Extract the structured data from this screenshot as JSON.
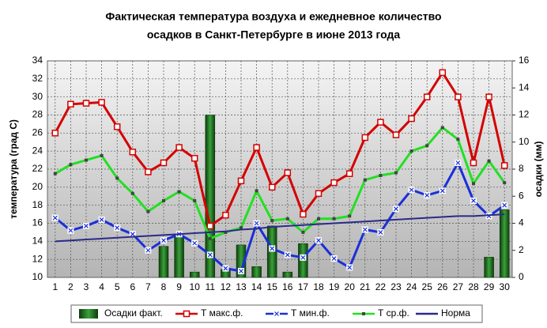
{
  "chart_data": {
    "type": "combo",
    "title": [
      "Фактическая температура воздуха и ежедневное количество",
      "осадков в Санкт-Петербурге в июне 2013 года"
    ],
    "ylabel": "температура (град С)",
    "y2label": "осадки (мм)",
    "categories": [
      "1",
      "2",
      "3",
      "4",
      "5",
      "6",
      "7",
      "8",
      "9",
      "10",
      "11",
      "12",
      "13",
      "14",
      "15",
      "16",
      "17",
      "18",
      "19",
      "20",
      "21",
      "22",
      "23",
      "24",
      "25",
      "26",
      "27",
      "28",
      "29",
      "30"
    ],
    "ylim": [
      10,
      34
    ],
    "yticks": [
      10,
      12,
      14,
      16,
      18,
      20,
      22,
      24,
      26,
      28,
      30,
      32,
      34
    ],
    "y2lim": [
      0,
      16
    ],
    "y2ticks": [
      0,
      2,
      4,
      6,
      8,
      10,
      12,
      14,
      16
    ],
    "grid": true,
    "series": [
      {
        "name": "Осадки факт.",
        "kind": "bar",
        "axis": "y2",
        "color": "#1f6b1f",
        "values": [
          0,
          0,
          0,
          0,
          0,
          0,
          0,
          2.3,
          3.0,
          0.4,
          12.0,
          0.6,
          2.4,
          0.8,
          3.8,
          0.4,
          2.5,
          0,
          0,
          0,
          0,
          0,
          0,
          0,
          0,
          0,
          0,
          0,
          1.5,
          5.0
        ]
      },
      {
        "name": "Т макс.ф.",
        "kind": "line",
        "marker": "square",
        "color": "#d40000",
        "values": [
          26.0,
          29.2,
          29.3,
          29.4,
          26.7,
          23.9,
          21.7,
          22.7,
          24.4,
          23.2,
          15.7,
          16.9,
          20.7,
          24.4,
          20.0,
          21.6,
          17.0,
          19.3,
          20.5,
          21.5,
          25.5,
          27.2,
          25.8,
          27.6,
          30.0,
          32.7,
          30.0,
          22.7,
          30.0,
          22.4
        ]
      },
      {
        "name": "Т мин.ф.",
        "kind": "line",
        "marker": "cross",
        "color": "#1a2fd8",
        "values": [
          16.6,
          15.2,
          15.7,
          16.4,
          15.5,
          14.8,
          13.0,
          14.1,
          14.8,
          13.8,
          12.5,
          11.0,
          10.7,
          16.0,
          13.2,
          12.5,
          12.2,
          14.1,
          12.1,
          11.1,
          15.3,
          15.0,
          17.6,
          19.7,
          19.1,
          19.6,
          22.7,
          18.5,
          16.8,
          18.0
        ]
      },
      {
        "name": "Т ср.ф.",
        "kind": "line",
        "marker": "dot",
        "color": "#22e022",
        "values": [
          21.5,
          22.5,
          23.0,
          23.5,
          21.0,
          19.3,
          17.3,
          18.5,
          19.5,
          18.5,
          14.3,
          15.0,
          15.5,
          19.6,
          16.3,
          16.5,
          15.0,
          16.5,
          16.5,
          16.8,
          20.8,
          21.3,
          21.6,
          24.0,
          24.6,
          26.6,
          25.3,
          20.4,
          22.9,
          20.5
        ]
      },
      {
        "name": "Норма",
        "kind": "line",
        "marker": "none",
        "color": "#2a2a8c",
        "values": [
          14.0,
          14.1,
          14.2,
          14.3,
          14.4,
          14.5,
          14.6,
          14.7,
          14.8,
          14.9,
          15.0,
          15.1,
          15.3,
          15.4,
          15.6,
          15.7,
          15.8,
          15.9,
          16.0,
          16.1,
          16.2,
          16.3,
          16.4,
          16.5,
          16.6,
          16.7,
          16.8,
          16.8,
          16.9,
          17.0
        ]
      }
    ]
  }
}
